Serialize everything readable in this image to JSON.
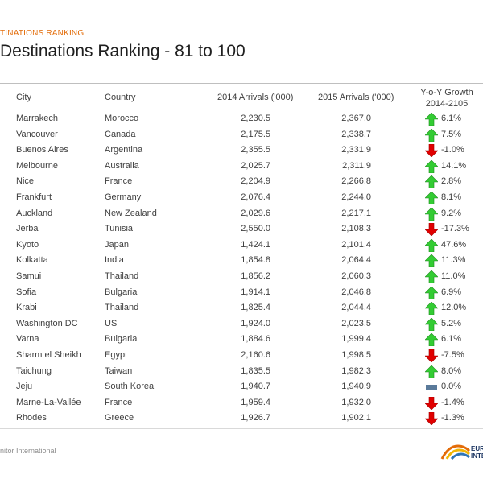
{
  "header": {
    "kicker": "TINATIONS RANKING",
    "title": "Destinations Ranking - 81 to 100"
  },
  "table": {
    "columns": {
      "city": "City",
      "country": "Country",
      "arrivals_2014": "2014 Arrivals ('000)",
      "arrivals_2015": "2015 Arrivals ('000)",
      "growth": "Y-o-Y Growth 2014-2105"
    },
    "rows": [
      {
        "city": "Marrakech",
        "country": "Morocco",
        "a2014": "2,230.5",
        "a2015": "2,367.0",
        "growth": "6.1%",
        "trend": "up"
      },
      {
        "city": "Vancouver",
        "country": "Canada",
        "a2014": "2,175.5",
        "a2015": "2,338.7",
        "growth": "7.5%",
        "trend": "up"
      },
      {
        "city": "Buenos Aires",
        "country": "Argentina",
        "a2014": "2,355.5",
        "a2015": "2,331.9",
        "growth": "-1.0%",
        "trend": "down"
      },
      {
        "city": "Melbourne",
        "country": "Australia",
        "a2014": "2,025.7",
        "a2015": "2,311.9",
        "growth": "14.1%",
        "trend": "up"
      },
      {
        "city": "Nice",
        "country": "France",
        "a2014": "2,204.9",
        "a2015": "2,266.8",
        "growth": "2.8%",
        "trend": "up"
      },
      {
        "city": "Frankfurt",
        "country": "Germany",
        "a2014": "2,076.4",
        "a2015": "2,244.0",
        "growth": "8.1%",
        "trend": "up"
      },
      {
        "city": "Auckland",
        "country": "New Zealand",
        "a2014": "2,029.6",
        "a2015": "2,217.1",
        "growth": "9.2%",
        "trend": "up"
      },
      {
        "city": "Jerba",
        "country": "Tunisia",
        "a2014": "2,550.0",
        "a2015": "2,108.3",
        "growth": "-17.3%",
        "trend": "down"
      },
      {
        "city": "Kyoto",
        "country": "Japan",
        "a2014": "1,424.1",
        "a2015": "2,101.4",
        "growth": "47.6%",
        "trend": "up"
      },
      {
        "city": "Kolkatta",
        "country": "India",
        "a2014": "1,854.8",
        "a2015": "2,064.4",
        "growth": "11.3%",
        "trend": "up"
      },
      {
        "city": "Samui",
        "country": "Thailand",
        "a2014": "1,856.2",
        "a2015": "2,060.3",
        "growth": "11.0%",
        "trend": "up"
      },
      {
        "city": "Sofia",
        "country": "Bulgaria",
        "a2014": "1,914.1",
        "a2015": "2,046.8",
        "growth": "6.9%",
        "trend": "up"
      },
      {
        "city": "Krabi",
        "country": "Thailand",
        "a2014": "1,825.4",
        "a2015": "2,044.4",
        "growth": "12.0%",
        "trend": "up"
      },
      {
        "city": "Washington DC",
        "country": "US",
        "a2014": "1,924.0",
        "a2015": "2,023.5",
        "growth": "5.2%",
        "trend": "up"
      },
      {
        "city": "Varna",
        "country": "Bulgaria",
        "a2014": "1,884.6",
        "a2015": "1,999.4",
        "growth": "6.1%",
        "trend": "up"
      },
      {
        "city": "Sharm el Sheikh",
        "country": "Egypt",
        "a2014": "2,160.6",
        "a2015": "1,998.5",
        "growth": "-7.5%",
        "trend": "down"
      },
      {
        "city": "Taichung",
        "country": "Taiwan",
        "a2014": "1,835.5",
        "a2015": "1,982.3",
        "growth": "8.0%",
        "trend": "up"
      },
      {
        "city": "Jeju",
        "country": "South Korea",
        "a2014": "1,940.7",
        "a2015": "1,940.9",
        "growth": "0.0%",
        "trend": "flat"
      },
      {
        "city": "Marne-La-Vallée",
        "country": "France",
        "a2014": "1,959.4",
        "a2015": "1,932.0",
        "growth": "-1.4%",
        "trend": "down"
      },
      {
        "city": "Rhodes",
        "country": "Greece",
        "a2014": "1,926.7",
        "a2015": "1,902.1",
        "growth": "-1.3%",
        "trend": "down"
      }
    ]
  },
  "footer": {
    "source": "nitor International",
    "logo_text_1": "EUR",
    "logo_text_2": "INTE"
  },
  "colors": {
    "up": "#33cc33",
    "down": "#e00000",
    "flat": "#5a7a9a",
    "kicker": "#e36c09"
  },
  "icons": {
    "up": "arrow-up-icon",
    "down": "arrow-down-icon",
    "flat": "flat-bar-icon"
  }
}
